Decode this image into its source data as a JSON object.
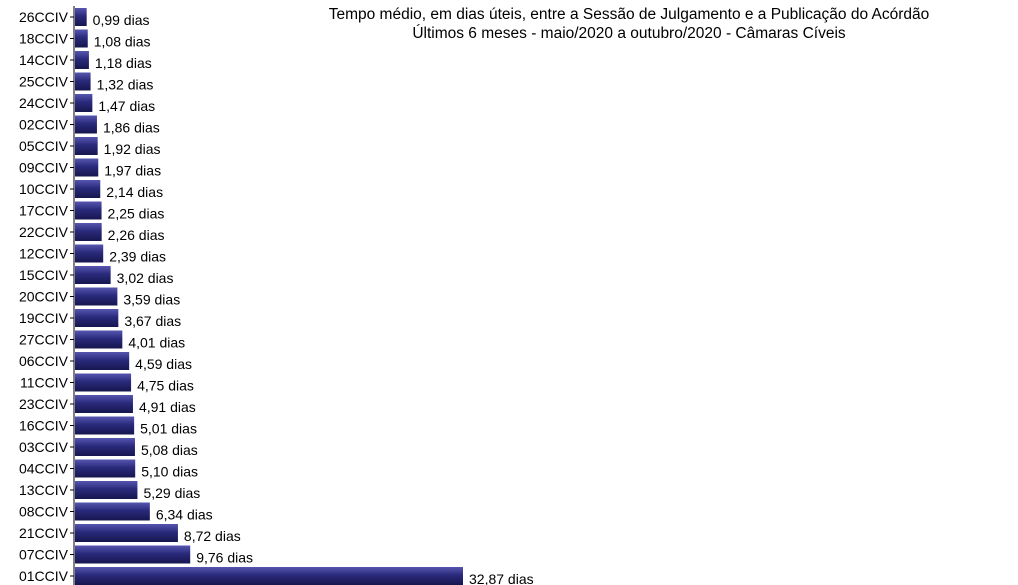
{
  "chart_data": {
    "type": "bar",
    "orientation": "horizontal",
    "title": "Tempo médio, em dias úteis, entre a Sessão de Julgamento  e a Publicação do Acórdão",
    "subtitle": "Últimos 6 meses - maio/2020 a outubro/2020 - Câmaras Cíveis",
    "categories": [
      "26CCIV",
      "18CCIV",
      "14CCIV",
      "25CCIV",
      "24CCIV",
      "02CCIV",
      "05CCIV",
      "09CCIV",
      "10CCIV",
      "17CCIV",
      "22CCIV",
      "12CCIV",
      "15CCIV",
      "20CCIV",
      "19CCIV",
      "27CCIV",
      "06CCIV",
      "11CCIV",
      "23CCIV",
      "16CCIV",
      "03CCIV",
      "04CCIV",
      "13CCIV",
      "08CCIV",
      "21CCIV",
      "07CCIV",
      "01CCIV"
    ],
    "values": [
      0.99,
      1.08,
      1.18,
      1.32,
      1.47,
      1.86,
      1.92,
      1.97,
      2.14,
      2.25,
      2.26,
      2.39,
      3.02,
      3.59,
      3.67,
      4.01,
      4.59,
      4.75,
      4.91,
      5.01,
      5.08,
      5.1,
      5.29,
      6.34,
      8.72,
      9.76,
      32.87
    ],
    "value_labels": [
      "0,99 dias",
      "1,08 dias",
      "1,18 dias",
      "1,32 dias",
      "1,47 dias",
      "1,86 dias",
      "1,92 dias",
      "1,97 dias",
      "2,14 dias",
      "2,25 dias",
      "2,26 dias",
      "2,39 dias",
      "3,02 dias",
      "3,59 dias",
      "3,67 dias",
      "4,01 dias",
      "4,59 dias",
      "4,75 dias",
      "4,91 dias",
      "5,01 dias",
      "5,08 dias",
      "5,10 dias",
      "5,29 dias",
      "6,34 dias",
      "8,72 dias",
      "9,76 dias",
      "32,87 dias"
    ],
    "xlim": [
      0,
      32.87
    ],
    "grid": false,
    "legend": "none",
    "bar_color": "#2a2a7c"
  }
}
